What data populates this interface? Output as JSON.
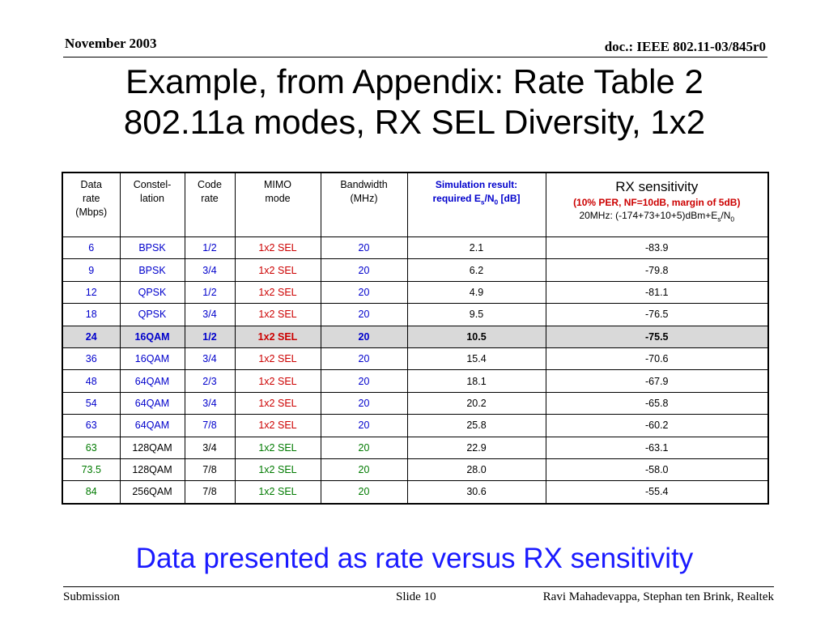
{
  "header": {
    "date": "November 2003",
    "doc": "doc.: IEEE 802.11-03/845r0"
  },
  "title": {
    "line1": "Example, from Appendix: Rate Table 2",
    "line2": "802.11a modes, RX SEL Diversity, 1x2"
  },
  "table": {
    "headers": {
      "rate": [
        "Data",
        "rate",
        "(Mbps)"
      ],
      "constellation": [
        "Constel-",
        "lation"
      ],
      "code": [
        "Code",
        "rate"
      ],
      "mimo": [
        "MIMO",
        "mode"
      ],
      "bandwidth": [
        "Bandwidth",
        "(MHz)"
      ],
      "sim": {
        "line1": "Simulation result:",
        "line2_pre": "required E",
        "line2_sub1": "s",
        "line2_mid": "/N",
        "line2_sub2": "0",
        "line2_post": " [dB]"
      },
      "rx": {
        "title": "RX sensitivity",
        "note": "(10% PER, NF=10dB, margin of 5dB)",
        "formula_pre": "20MHz: (-174+73+10+5)dBm+E",
        "formula_sub1": "s",
        "formula_mid": "/N",
        "formula_sub2": "0"
      }
    },
    "rows": [
      {
        "rate": "6",
        "constellation": "BPSK",
        "code": "1/2",
        "mimo": "1x2 SEL",
        "bw": "20",
        "sim": "2.1",
        "rx": "-83.9"
      },
      {
        "rate": "9",
        "constellation": "BPSK",
        "code": "3/4",
        "mimo": "1x2 SEL",
        "bw": "20",
        "sim": "6.2",
        "rx": "-79.8"
      },
      {
        "rate": "12",
        "constellation": "QPSK",
        "code": "1/2",
        "mimo": "1x2 SEL",
        "bw": "20",
        "sim": "4.9",
        "rx": "-81.1"
      },
      {
        "rate": "18",
        "constellation": "QPSK",
        "code": "3/4",
        "mimo": "1x2 SEL",
        "bw": "20",
        "sim": "9.5",
        "rx": "-76.5"
      },
      {
        "rate": "24",
        "constellation": "16QAM",
        "code": "1/2",
        "mimo": "1x2 SEL",
        "bw": "20",
        "sim": "10.5",
        "rx": "-75.5",
        "highlight": true
      },
      {
        "rate": "36",
        "constellation": "16QAM",
        "code": "3/4",
        "mimo": "1x2 SEL",
        "bw": "20",
        "sim": "15.4",
        "rx": "-70.6"
      },
      {
        "rate": "48",
        "constellation": "64QAM",
        "code": "2/3",
        "mimo": "1x2 SEL",
        "bw": "20",
        "sim": "18.1",
        "rx": "-67.9"
      },
      {
        "rate": "54",
        "constellation": "64QAM",
        "code": "3/4",
        "mimo": "1x2 SEL",
        "bw": "20",
        "sim": "20.2",
        "rx": "-65.8"
      },
      {
        "rate": "63",
        "constellation": "64QAM",
        "code": "7/8",
        "mimo": "1x2 SEL",
        "bw": "20",
        "sim": "25.8",
        "rx": "-60.2"
      },
      {
        "rate": "63",
        "constellation": "128QAM",
        "code": "3/4",
        "mimo": "1x2 SEL",
        "bw": "20",
        "sim": "22.9",
        "rx": "-63.1",
        "style": "green"
      },
      {
        "rate": "73.5",
        "constellation": "128QAM",
        "code": "7/8",
        "mimo": "1x2 SEL",
        "bw": "20",
        "sim": "28.0",
        "rx": "-58.0",
        "style": "green"
      },
      {
        "rate": "84",
        "constellation": "256QAM",
        "code": "7/8",
        "mimo": "1x2 SEL",
        "bw": "20",
        "sim": "30.6",
        "rx": "-55.4",
        "style": "green"
      }
    ]
  },
  "colors": {
    "blue": "#0000cc",
    "red": "#cc0000",
    "green": "#007a00",
    "highlight_bg": "#d9d9d9",
    "caption": "#1a1aff"
  },
  "caption": "Data presented as rate versus RX sensitivity",
  "footer": {
    "left": "Submission",
    "middle": "Slide 10",
    "right": "Ravi Mahadevappa, Stephan ten Brink, Realtek"
  }
}
